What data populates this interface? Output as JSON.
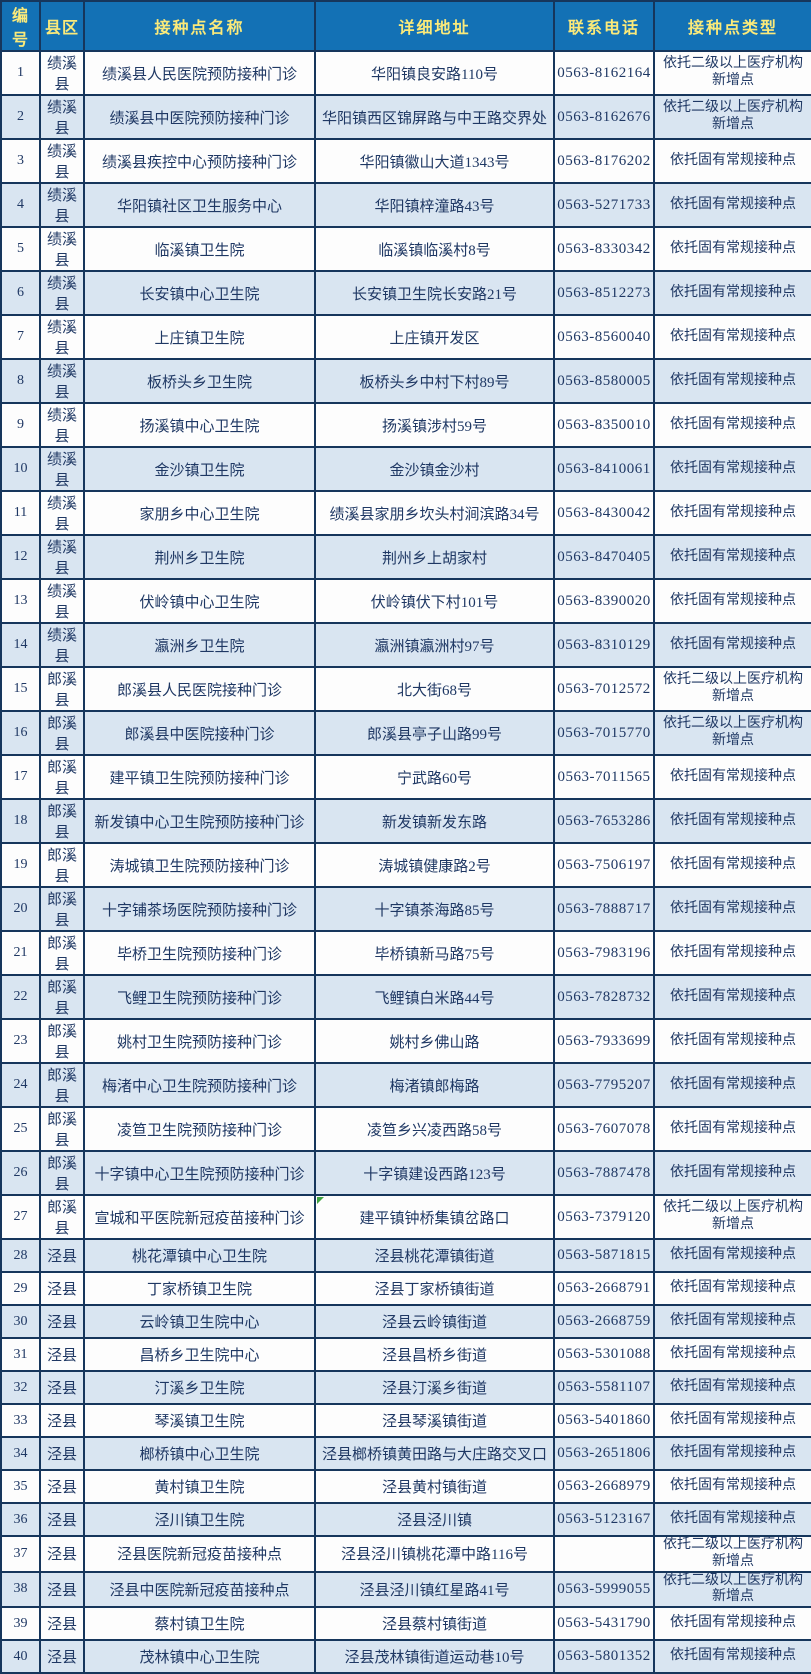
{
  "colors": {
    "header_bg": "#1371B5",
    "header_text": "#FBEA7A",
    "grid_border": "#16365C",
    "row_bg": "#FDFDFD",
    "row_alt_bg": "#D9E5F1",
    "body_text": "#1F3864",
    "comment_marker_green": "#3FA33F"
  },
  "table": {
    "headers": [
      "编号",
      "县区",
      "接种点名称",
      "详细地址",
      "联系电话",
      "接种点类型"
    ],
    "rows": [
      {
        "no": "1",
        "county": "绩溪县",
        "name": "绩溪县人民医院预防接种门诊",
        "address": "华阳镇良安路110号",
        "phone": "0563-8162164",
        "type": "依托二级以上医疗机构新增点"
      },
      {
        "no": "2",
        "county": "绩溪县",
        "name": "绩溪县中医院预防接种门诊",
        "address": "华阳镇西区锦屏路与中王路交界处",
        "phone": "0563-8162676",
        "type": "依托二级以上医疗机构新增点"
      },
      {
        "no": "3",
        "county": "绩溪县",
        "name": "绩溪县疾控中心预防接种门诊",
        "address": "华阳镇徽山大道1343号",
        "phone": "0563-8176202",
        "type": "依托固有常规接种点"
      },
      {
        "no": "4",
        "county": "绩溪县",
        "name": "华阳镇社区卫生服务中心",
        "address": "华阳镇梓潼路43号",
        "phone": "0563-5271733",
        "type": "依托固有常规接种点"
      },
      {
        "no": "5",
        "county": "绩溪县",
        "name": "临溪镇卫生院",
        "address": "临溪镇临溪村8号",
        "phone": "0563-8330342",
        "type": "依托固有常规接种点"
      },
      {
        "no": "6",
        "county": "绩溪县",
        "name": "长安镇中心卫生院",
        "address": "长安镇卫生院长安路21号",
        "phone": "0563-8512273",
        "type": "依托固有常规接种点"
      },
      {
        "no": "7",
        "county": "绩溪县",
        "name": "上庄镇卫生院",
        "address": "上庄镇开发区",
        "phone": "0563-8560040",
        "type": "依托固有常规接种点"
      },
      {
        "no": "8",
        "county": "绩溪县",
        "name": "板桥头乡卫生院",
        "address": "板桥头乡中村下村89号",
        "phone": "0563-8580005",
        "type": "依托固有常规接种点"
      },
      {
        "no": "9",
        "county": "绩溪县",
        "name": "扬溪镇中心卫生院",
        "address": "扬溪镇涉村59号",
        "phone": "0563-8350010",
        "type": "依托固有常规接种点"
      },
      {
        "no": "10",
        "county": "绩溪县",
        "name": "金沙镇卫生院",
        "address": "金沙镇金沙村",
        "phone": "0563-8410061",
        "type": "依托固有常规接种点"
      },
      {
        "no": "11",
        "county": "绩溪县",
        "name": "家朋乡中心卫生院",
        "address": "绩溪县家朋乡坎头村涧滨路34号",
        "phone": "0563-8430042",
        "type": "依托固有常规接种点"
      },
      {
        "no": "12",
        "county": "绩溪县",
        "name": "荆州乡卫生院",
        "address": "荆州乡上胡家村",
        "phone": "0563-8470405",
        "type": "依托固有常规接种点"
      },
      {
        "no": "13",
        "county": "绩溪县",
        "name": "伏岭镇中心卫生院",
        "address": "伏岭镇伏下村101号",
        "phone": "0563-8390020",
        "type": "依托固有常规接种点"
      },
      {
        "no": "14",
        "county": "绩溪县",
        "name": "瀛洲乡卫生院",
        "address": "瀛洲镇瀛洲村97号",
        "phone": "0563-8310129",
        "type": "依托固有常规接种点"
      },
      {
        "no": "15",
        "county": "郎溪县",
        "name": "郎溪县人民医院接种门诊",
        "address": "北大街68号",
        "phone": "0563-7012572",
        "type": "依托二级以上医疗机构新增点"
      },
      {
        "no": "16",
        "county": "郎溪县",
        "name": "郎溪县中医院接种门诊",
        "address": "郎溪县亭子山路99号",
        "phone": "0563-7015770",
        "type": "依托二级以上医疗机构新增点"
      },
      {
        "no": "17",
        "county": "郎溪县",
        "name": "建平镇卫生院预防接种门诊",
        "address": "宁武路60号",
        "phone": "0563-7011565",
        "type": "依托固有常规接种点"
      },
      {
        "no": "18",
        "county": "郎溪县",
        "name": "新发镇中心卫生院预防接种门诊",
        "address": "新发镇新发东路",
        "phone": "0563-7653286",
        "type": "依托固有常规接种点"
      },
      {
        "no": "19",
        "county": "郎溪县",
        "name": "涛城镇卫生院预防接种门诊",
        "address": "涛城镇健康路2号",
        "phone": "0563-7506197",
        "type": "依托固有常规接种点"
      },
      {
        "no": "20",
        "county": "郎溪县",
        "name": "十字铺茶场医院预防接种门诊",
        "address": "十字镇茶海路85号",
        "phone": "0563-7888717",
        "type": "依托固有常规接种点"
      },
      {
        "no": "21",
        "county": "郎溪县",
        "name": "毕桥卫生院预防接种门诊",
        "address": "毕桥镇新马路75号",
        "phone": "0563-7983196",
        "type": "依托固有常规接种点"
      },
      {
        "no": "22",
        "county": "郎溪县",
        "name": "飞鲤卫生院预防接种门诊",
        "address": "飞鲤镇白米路44号",
        "phone": "0563-7828732",
        "type": "依托固有常规接种点"
      },
      {
        "no": "23",
        "county": "郎溪县",
        "name": "姚村卫生院预防接种门诊",
        "address": "姚村乡佛山路",
        "phone": "0563-7933699",
        "type": "依托固有常规接种点"
      },
      {
        "no": "24",
        "county": "郎溪县",
        "name": "梅渚中心卫生院预防接种门诊",
        "address": "梅渚镇郎梅路",
        "phone": "0563-7795207",
        "type": "依托固有常规接种点"
      },
      {
        "no": "25",
        "county": "郎溪县",
        "name": "凌笪卫生院预防接种门诊",
        "address": "凌笪乡兴凌西路58号",
        "phone": "0563-7607078",
        "type": "依托固有常规接种点"
      },
      {
        "no": "26",
        "county": "郎溪县",
        "name": "十字镇中心卫生院预防接种门诊",
        "address": "十字镇建设西路123号",
        "phone": "0563-7887478",
        "type": "依托固有常规接种点"
      },
      {
        "no": "27",
        "county": "郎溪县",
        "name": "宣城和平医院新冠疫苗接种门诊",
        "address": "建平镇钟桥集镇岔路口",
        "phone": "0563-7379120",
        "type": "依托二级以上医疗机构新增点",
        "marker": true
      },
      {
        "no": "28",
        "county": "泾县",
        "name": "桃花潭镇中心卫生院",
        "address": "泾县桃花潭镇街道",
        "phone": "0563-5871815",
        "type": "依托固有常规接种点"
      },
      {
        "no": "29",
        "county": "泾县",
        "name": "丁家桥镇卫生院",
        "address": "泾县丁家桥镇街道",
        "phone": "0563-2668791",
        "type": "依托固有常规接种点"
      },
      {
        "no": "30",
        "county": "泾县",
        "name": "云岭镇卫生院中心",
        "address": "泾县云岭镇街道",
        "phone": "0563-2668759",
        "type": "依托固有常规接种点"
      },
      {
        "no": "31",
        "county": "泾县",
        "name": "昌桥乡卫生院中心",
        "address": "泾县昌桥乡街道",
        "phone": "0563-5301088",
        "type": "依托固有常规接种点"
      },
      {
        "no": "32",
        "county": "泾县",
        "name": "汀溪乡卫生院",
        "address": "泾县汀溪乡街道",
        "phone": "0563-5581107",
        "type": "依托固有常规接种点"
      },
      {
        "no": "33",
        "county": "泾县",
        "name": "琴溪镇卫生院",
        "address": "泾县琴溪镇街道",
        "phone": "0563-5401860",
        "type": "依托固有常规接种点"
      },
      {
        "no": "34",
        "county": "泾县",
        "name": "榔桥镇中心卫生院",
        "address": "泾县榔桥镇黄田路与大庄路交叉口",
        "phone": "0563-2651806",
        "type": "依托固有常规接种点"
      },
      {
        "no": "35",
        "county": "泾县",
        "name": "黄村镇卫生院",
        "address": "泾县黄村镇街道",
        "phone": "0563-2668979",
        "type": "依托固有常规接种点"
      },
      {
        "no": "36",
        "county": "泾县",
        "name": "泾川镇卫生院",
        "address": "泾县泾川镇",
        "phone": "0563-5123167",
        "type": "依托固有常规接种点"
      },
      {
        "no": "37",
        "county": "泾县",
        "name": "泾县医院新冠疫苗接种点",
        "address": "泾县泾川镇桃花潭中路116号",
        "phone": "",
        "type": "依托二级以上医疗机构新增点"
      },
      {
        "no": "38",
        "county": "泾县",
        "name": "泾县中医院新冠疫苗接种点",
        "address": "泾县泾川镇红星路41号",
        "phone": "0563-5999055",
        "type": "依托二级以上医疗机构新增点"
      },
      {
        "no": "39",
        "county": "泾县",
        "name": "蔡村镇卫生院",
        "address": "泾县蔡村镇街道",
        "phone": "0563-5431790",
        "type": "依托固有常规接种点"
      },
      {
        "no": "40",
        "county": "泾县",
        "name": "茂林镇中心卫生院",
        "address": "泾县茂林镇街道运动巷10号",
        "phone": "0563-5801352",
        "type": "依托固有常规接种点"
      }
    ]
  }
}
